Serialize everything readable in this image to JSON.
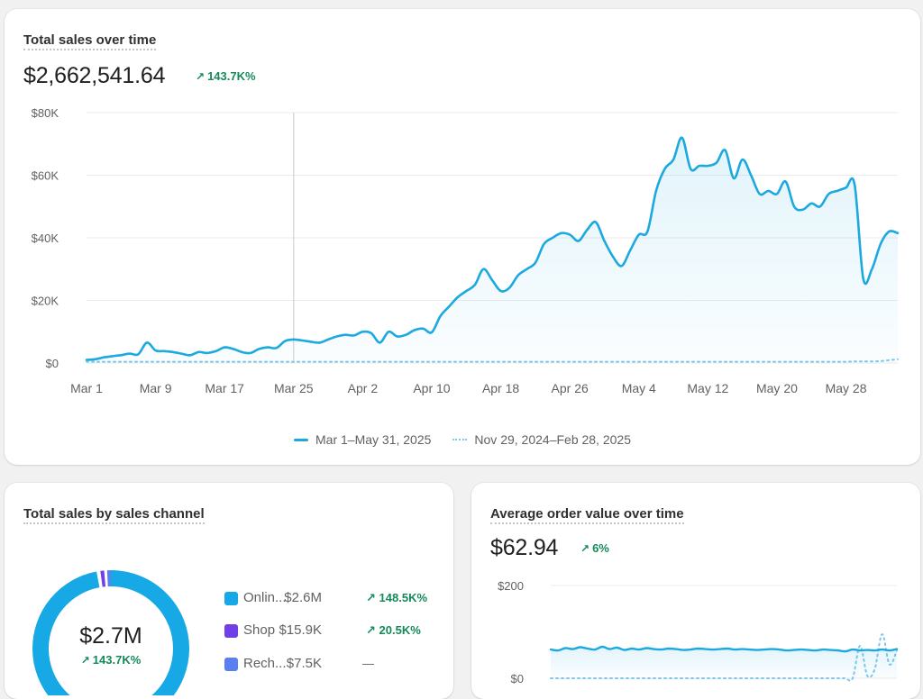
{
  "colors": {
    "primary_series": "#1ba9e0",
    "comparison_series": "#7fc8ea",
    "positive_delta": "#138a5a",
    "channel_online": "#16a9e6",
    "channel_shop": "#6e40e6",
    "channel_recharge": "#5a7ff0"
  },
  "total_sales": {
    "title": "Total sales over time",
    "value": "$2,662,541.64",
    "delta": "143.7K%",
    "delta_icon": "arrow-up-right-icon",
    "legend": {
      "current": "Mar 1–May 31, 2025",
      "previous": "Nov 29, 2024–Feb 28, 2025"
    },
    "chart_data": {
      "type": "line",
      "y_tick_labels": [
        "$0",
        "$20K",
        "$40K",
        "$60K",
        "$80K"
      ],
      "ylim": [
        0,
        80000
      ],
      "x_tick_labels": [
        "Mar 1",
        "Mar 9",
        "Mar 17",
        "Mar 25",
        "Apr 2",
        "Apr 10",
        "Apr 18",
        "Apr 26",
        "May 4",
        "May 12",
        "May 20",
        "May 28"
      ],
      "grid": true,
      "legend_position": "bottom-center",
      "hover_index": 24,
      "series": [
        {
          "name": "Mar 1–May 31, 2025",
          "values": [
            1000,
            1200,
            1800,
            2200,
            2500,
            3000,
            2800,
            6500,
            4000,
            3800,
            3500,
            3000,
            2500,
            3500,
            3200,
            3800,
            5000,
            4500,
            3500,
            3200,
            4500,
            5000,
            4800,
            7000,
            7500,
            7200,
            6800,
            6500,
            7500,
            8500,
            9000,
            8800,
            10000,
            9500,
            6500,
            10000,
            8500,
            9000,
            10500,
            11000,
            9800,
            15000,
            18000,
            21000,
            23000,
            25000,
            30000,
            26500,
            23000,
            24000,
            28000,
            30000,
            32000,
            38000,
            40000,
            41500,
            41000,
            39000,
            42500,
            45000,
            39000,
            34000,
            31000,
            36000,
            41000,
            42000,
            55000,
            62000,
            65000,
            72000,
            62000,
            63000,
            63000,
            64000,
            68000,
            59000,
            65000,
            60000,
            54000,
            55000,
            54000,
            58000,
            50000,
            49000,
            51000,
            50000,
            54000,
            55000,
            56000,
            57000,
            27000,
            30000,
            38000,
            42000,
            41500
          ],
          "style": "solid"
        },
        {
          "name": "Nov 29, 2024–Feb 28, 2025",
          "values": [
            400,
            400,
            400,
            400,
            400,
            400,
            400,
            400,
            400,
            400,
            400,
            400,
            400,
            400,
            400,
            400,
            400,
            400,
            400,
            400,
            400,
            400,
            400,
            400,
            400,
            400,
            400,
            400,
            400,
            400,
            400,
            400,
            400,
            400,
            400,
            400,
            400,
            400,
            400,
            400,
            400,
            400,
            400,
            400,
            400,
            400,
            400,
            400,
            400,
            400,
            400,
            400,
            400,
            400,
            400,
            400,
            400,
            400,
            400,
            400,
            400,
            400,
            400,
            400,
            400,
            400,
            400,
            400,
            400,
            400,
            400,
            400,
            400,
            400,
            400,
            400,
            400,
            400,
            400,
            400,
            400,
            400,
            400,
            400,
            400,
            400,
            400,
            400,
            500,
            500,
            500,
            600,
            900,
            1200
          ],
          "style": "dotted"
        }
      ]
    }
  },
  "sales_channel": {
    "title": "Total sales by sales channel",
    "center_value": "$2.7M",
    "center_delta": "143.7K%",
    "center_delta_icon": "arrow-up-right-icon",
    "rows": [
      {
        "name": "Onlin...",
        "value": "$2.6M",
        "delta": "148.5K%",
        "icon": "arrow-up-right-icon"
      },
      {
        "name": "Shop",
        "value": "$15.9K",
        "delta": "20.5K%",
        "icon": "arrow-up-right-icon"
      },
      {
        "name": "Rech...",
        "value": "$7.5K",
        "delta": "—",
        "icon": ""
      }
    ],
    "chart_data": {
      "type": "pie",
      "categories": [
        "Onlin...",
        "Shop",
        "Rech..."
      ],
      "values": [
        2.6,
        0.0159,
        0.0075
      ]
    }
  },
  "aov": {
    "title": "Average order value over time",
    "value": "$62.94",
    "delta": "6%",
    "delta_icon": "arrow-up-right-icon",
    "chart_data": {
      "type": "line",
      "y_tick_labels": [
        "$0",
        "$200"
      ],
      "ylim": [
        0,
        200
      ],
      "grid": true,
      "series": [
        {
          "values": [
            62,
            60,
            65,
            63,
            67,
            64,
            62,
            68,
            63,
            66,
            61,
            64,
            62,
            65,
            63,
            62,
            64,
            63,
            61,
            62,
            64,
            63,
            62,
            63,
            64,
            62,
            63,
            62,
            61,
            62,
            63,
            62,
            60,
            61,
            62,
            61,
            60,
            62,
            61,
            60,
            58,
            62,
            60,
            61,
            60,
            62,
            60,
            63
          ],
          "style": "solid"
        },
        {
          "values": [
            0,
            0,
            0,
            0,
            0,
            0,
            0,
            0,
            0,
            0,
            0,
            0,
            0,
            0,
            0,
            0,
            0,
            0,
            0,
            0,
            0,
            0,
            0,
            0,
            0,
            0,
            0,
            0,
            0,
            0,
            0,
            0,
            0,
            0,
            0,
            0,
            0,
            0,
            0,
            0,
            0,
            0,
            70,
            5,
            20,
            95,
            30,
            60
          ],
          "style": "dotted"
        }
      ]
    }
  }
}
